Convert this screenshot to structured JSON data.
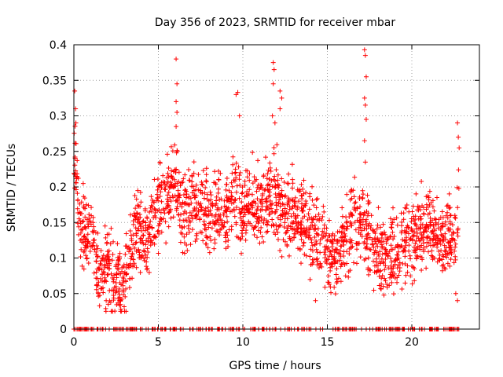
{
  "chart_data": {
    "type": "scatter",
    "title": "Day 356 of 2023, SRMTID for receiver mbar",
    "xlabel": "GPS time / hours",
    "ylabel": "SRMTID / TECUs",
    "xlim": [
      0,
      24
    ],
    "ylim": [
      0,
      0.4
    ],
    "x_ticks": [
      0,
      5,
      10,
      15,
      20
    ],
    "x_tick_labels": [
      "0",
      "5",
      "10",
      "15",
      "20"
    ],
    "y_ticks": [
      0,
      0.05,
      0.1,
      0.15,
      0.2,
      0.25,
      0.3,
      0.35,
      0.4
    ],
    "y_tick_labels": [
      "0",
      "0.05",
      "0.1",
      "0.15",
      "0.2",
      "0.25",
      "0.3",
      "0.35",
      "0.4"
    ],
    "grid": true,
    "marker": "+",
    "color": "#ff0000",
    "series": [
      {
        "name": "SRMTID",
        "profile": [
          {
            "x": 0.0,
            "y": 0.24
          },
          {
            "x": 0.1,
            "y": 0.25
          },
          {
            "x": 0.2,
            "y": 0.19
          },
          {
            "x": 0.4,
            "y": 0.15
          },
          {
            "x": 0.7,
            "y": 0.13
          },
          {
            "x": 1.0,
            "y": 0.14
          },
          {
            "x": 1.3,
            "y": 0.1
          },
          {
            "x": 1.6,
            "y": 0.06
          },
          {
            "x": 1.9,
            "y": 0.09
          },
          {
            "x": 2.2,
            "y": 0.08
          },
          {
            "x": 2.5,
            "y": 0.07
          },
          {
            "x": 2.8,
            "y": 0.06
          },
          {
            "x": 3.0,
            "y": 0.07
          },
          {
            "x": 3.3,
            "y": 0.1
          },
          {
            "x": 3.6,
            "y": 0.13
          },
          {
            "x": 4.0,
            "y": 0.14
          },
          {
            "x": 4.4,
            "y": 0.12
          },
          {
            "x": 4.8,
            "y": 0.16
          },
          {
            "x": 5.2,
            "y": 0.18
          },
          {
            "x": 5.6,
            "y": 0.19
          },
          {
            "x": 6.0,
            "y": 0.2
          },
          {
            "x": 6.5,
            "y": 0.16
          },
          {
            "x": 7.0,
            "y": 0.18
          },
          {
            "x": 7.5,
            "y": 0.17
          },
          {
            "x": 8.0,
            "y": 0.15
          },
          {
            "x": 8.5,
            "y": 0.17
          },
          {
            "x": 9.0,
            "y": 0.16
          },
          {
            "x": 9.5,
            "y": 0.19
          },
          {
            "x": 10.0,
            "y": 0.16
          },
          {
            "x": 10.5,
            "y": 0.18
          },
          {
            "x": 11.0,
            "y": 0.17
          },
          {
            "x": 11.5,
            "y": 0.18
          },
          {
            "x": 12.0,
            "y": 0.19
          },
          {
            "x": 12.5,
            "y": 0.16
          },
          {
            "x": 13.0,
            "y": 0.17
          },
          {
            "x": 13.5,
            "y": 0.15
          },
          {
            "x": 14.0,
            "y": 0.14
          },
          {
            "x": 14.5,
            "y": 0.12
          },
          {
            "x": 15.0,
            "y": 0.11
          },
          {
            "x": 15.5,
            "y": 0.1
          },
          {
            "x": 16.0,
            "y": 0.12
          },
          {
            "x": 16.5,
            "y": 0.15
          },
          {
            "x": 17.0,
            "y": 0.15
          },
          {
            "x": 17.5,
            "y": 0.13
          },
          {
            "x": 18.0,
            "y": 0.11
          },
          {
            "x": 18.5,
            "y": 0.1
          },
          {
            "x": 19.0,
            "y": 0.11
          },
          {
            "x": 19.5,
            "y": 0.13
          },
          {
            "x": 20.0,
            "y": 0.12
          },
          {
            "x": 20.5,
            "y": 0.14
          },
          {
            "x": 21.0,
            "y": 0.15
          },
          {
            "x": 21.5,
            "y": 0.13
          },
          {
            "x": 22.0,
            "y": 0.12
          },
          {
            "x": 22.5,
            "y": 0.13
          },
          {
            "x": 22.8,
            "y": 0.18
          }
        ],
        "spread": 0.045,
        "points_per_hour": 90,
        "x_range": [
          0,
          22.8
        ],
        "outliers": [
          {
            "x": 0.05,
            "y": 0.335
          },
          {
            "x": 0.1,
            "y": 0.31
          },
          {
            "x": 0.12,
            "y": 0.29
          },
          {
            "x": 6.05,
            "y": 0.38
          },
          {
            "x": 6.1,
            "y": 0.345
          },
          {
            "x": 6.05,
            "y": 0.32
          },
          {
            "x": 6.1,
            "y": 0.305
          },
          {
            "x": 6.05,
            "y": 0.285
          },
          {
            "x": 9.6,
            "y": 0.33
          },
          {
            "x": 9.7,
            "y": 0.333
          },
          {
            "x": 9.8,
            "y": 0.3
          },
          {
            "x": 11.8,
            "y": 0.375
          },
          {
            "x": 11.85,
            "y": 0.365
          },
          {
            "x": 11.8,
            "y": 0.345
          },
          {
            "x": 11.75,
            "y": 0.3
          },
          {
            "x": 11.9,
            "y": 0.29
          },
          {
            "x": 12.2,
            "y": 0.335
          },
          {
            "x": 12.3,
            "y": 0.325
          },
          {
            "x": 12.2,
            "y": 0.31
          },
          {
            "x": 17.2,
            "y": 0.393
          },
          {
            "x": 17.25,
            "y": 0.385
          },
          {
            "x": 17.3,
            "y": 0.355
          },
          {
            "x": 17.2,
            "y": 0.325
          },
          {
            "x": 17.25,
            "y": 0.315
          },
          {
            "x": 17.3,
            "y": 0.295
          },
          {
            "x": 17.2,
            "y": 0.265
          },
          {
            "x": 17.25,
            "y": 0.235
          },
          {
            "x": 22.7,
            "y": 0.29
          },
          {
            "x": 22.75,
            "y": 0.27
          },
          {
            "x": 22.8,
            "y": 0.255
          },
          {
            "x": 22.6,
            "y": 0.05
          },
          {
            "x": 22.7,
            "y": 0.04
          },
          {
            "x": 1.9,
            "y": 0.025
          },
          {
            "x": 14.3,
            "y": 0.04
          }
        ],
        "zero_band": {
          "x_range": [
            0,
            22.8
          ],
          "count": 260
        }
      }
    ]
  }
}
